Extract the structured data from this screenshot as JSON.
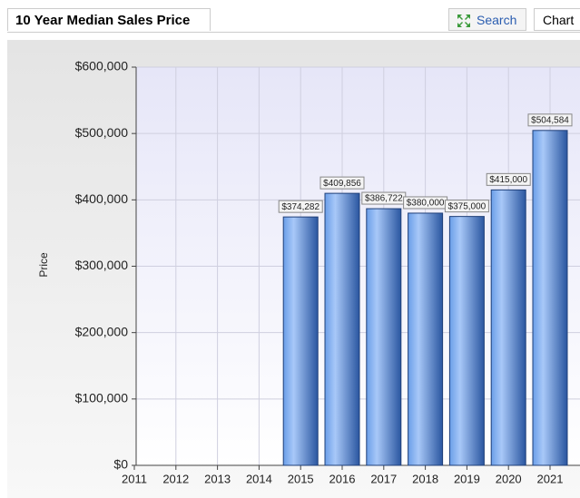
{
  "header": {
    "title": "10 Year Median Sales Price",
    "buttons": [
      "Search",
      "Chart"
    ]
  },
  "chart_data": {
    "type": "bar",
    "y_label": "Price",
    "categories": [
      "2011",
      "2012",
      "2013",
      "2014",
      "2015",
      "2016",
      "2017",
      "2018",
      "2019",
      "2020",
      "2021"
    ],
    "values": [
      null,
      null,
      null,
      null,
      374282,
      409856,
      386722,
      380000,
      375000,
      415000,
      504584
    ],
    "value_labels": [
      null,
      null,
      null,
      null,
      "$374,282",
      "$409,856",
      "$386,722",
      "$380,000",
      "$375,000",
      "$415,000",
      "$504,584"
    ],
    "color": "#4a7fd6",
    "ylim": [
      0,
      600000
    ],
    "yticks": [
      {
        "value": 0,
        "label": "$0"
      },
      {
        "value": 100000,
        "label": "$100,000"
      },
      {
        "value": 200000,
        "label": "$200,000"
      },
      {
        "value": 300000,
        "label": "$300,000"
      },
      {
        "value": 400000,
        "label": "$400,000"
      },
      {
        "value": 500000,
        "label": "$500,000"
      },
      {
        "value": 600000,
        "label": "$600,000"
      }
    ],
    "grid": true
  }
}
